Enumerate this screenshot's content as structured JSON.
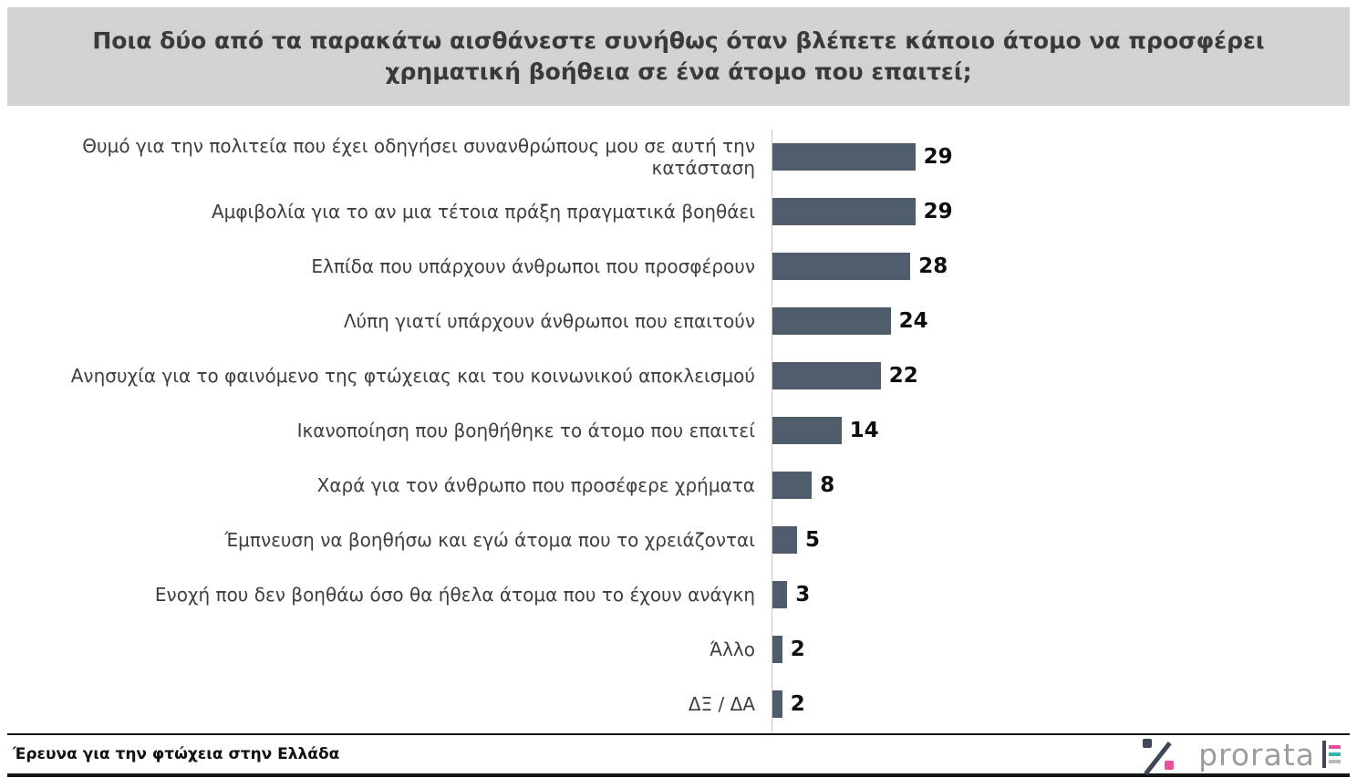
{
  "header": {
    "title": "Ποια δύο από τα παρακάτω αισθάνεστε συνήθως όταν βλέπετε κάποιο άτομο να προσφέρει χρηματική βοήθεια σε ένα άτομο που επαιτεί;"
  },
  "chart_data": {
    "type": "bar",
    "orientation": "horizontal",
    "title": "Ποια δύο από τα παρακάτω αισθάνεστε συνήθως όταν βλέπετε κάποιο άτομο να προσφέρει χρηματική βοήθεια σε ένα άτομο που επαιτεί;",
    "categories": [
      "Θυμό για την πολιτεία που έχει οδηγήσει συνανθρώπους μου σε αυτή την κατάσταση",
      "Αμφιβολία για το αν μια τέτοια πράξη πραγματικά βοηθάει",
      "Ελπίδα που υπάρχουν άνθρωποι που προσφέρουν",
      "Λύπη γιατί υπάρχουν άνθρωποι που επαιτούν",
      "Ανησυχία για το φαινόμενο της φτώχειας και του κοινωνικού αποκλεισμού",
      "Ικανοποίηση που βοηθήθηκε το άτομο που επαιτεί",
      "Χαρά για τον άνθρωπο που προσέφερε χρήματα",
      "Έμπνευση να βοηθήσω και εγώ άτομα που το χρειάζονται",
      "Ενοχή που δεν βοηθάω όσο θα ήθελα άτομα που το έχουν ανάγκη",
      "Άλλο",
      "ΔΞ / ΔΑ"
    ],
    "values": [
      29,
      29,
      28,
      24,
      22,
      14,
      8,
      5,
      3,
      2,
      2
    ],
    "xlim": [
      0,
      30
    ],
    "value_labels_shown": true,
    "grid": false,
    "bar_color": "#4e5c6c"
  },
  "footer": {
    "source": "Έρευνα για την φτώχεια στην Ελλάδα",
    "brand_name": "prorata",
    "icons": {
      "percent_logo": "percent-logo-icon",
      "brand_mark": "prorata-logomark-icon"
    },
    "brand_colors": {
      "dark": "#3d4755",
      "pink": "#e94f9d",
      "teal": "#35b5ac",
      "gray": "#9c9c9c"
    }
  }
}
